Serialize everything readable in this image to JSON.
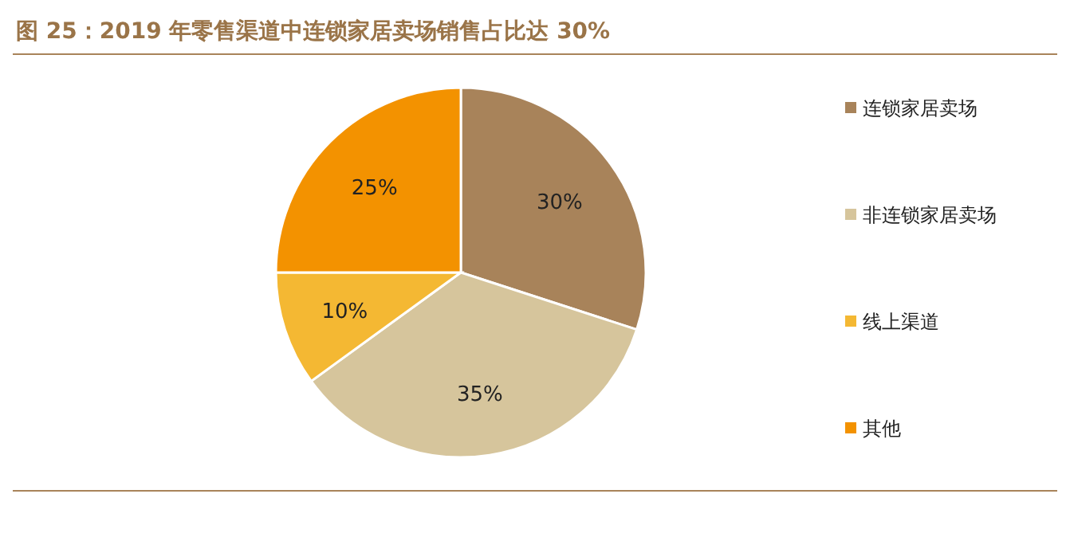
{
  "chart_data": {
    "type": "pie",
    "title": "图 25：2019 年零售渠道中连锁家居卖场销售占比达 30%",
    "categories": [
      "连锁家居卖场",
      "非连锁家居卖场",
      "线上渠道",
      "其他"
    ],
    "values": [
      30,
      35,
      10,
      25
    ],
    "colors": [
      "#a8835a",
      "#d6c59c",
      "#f4b833",
      "#f39200"
    ],
    "value_labels": [
      "30%",
      "35%",
      "10%",
      "25%"
    ],
    "legend": "right"
  }
}
